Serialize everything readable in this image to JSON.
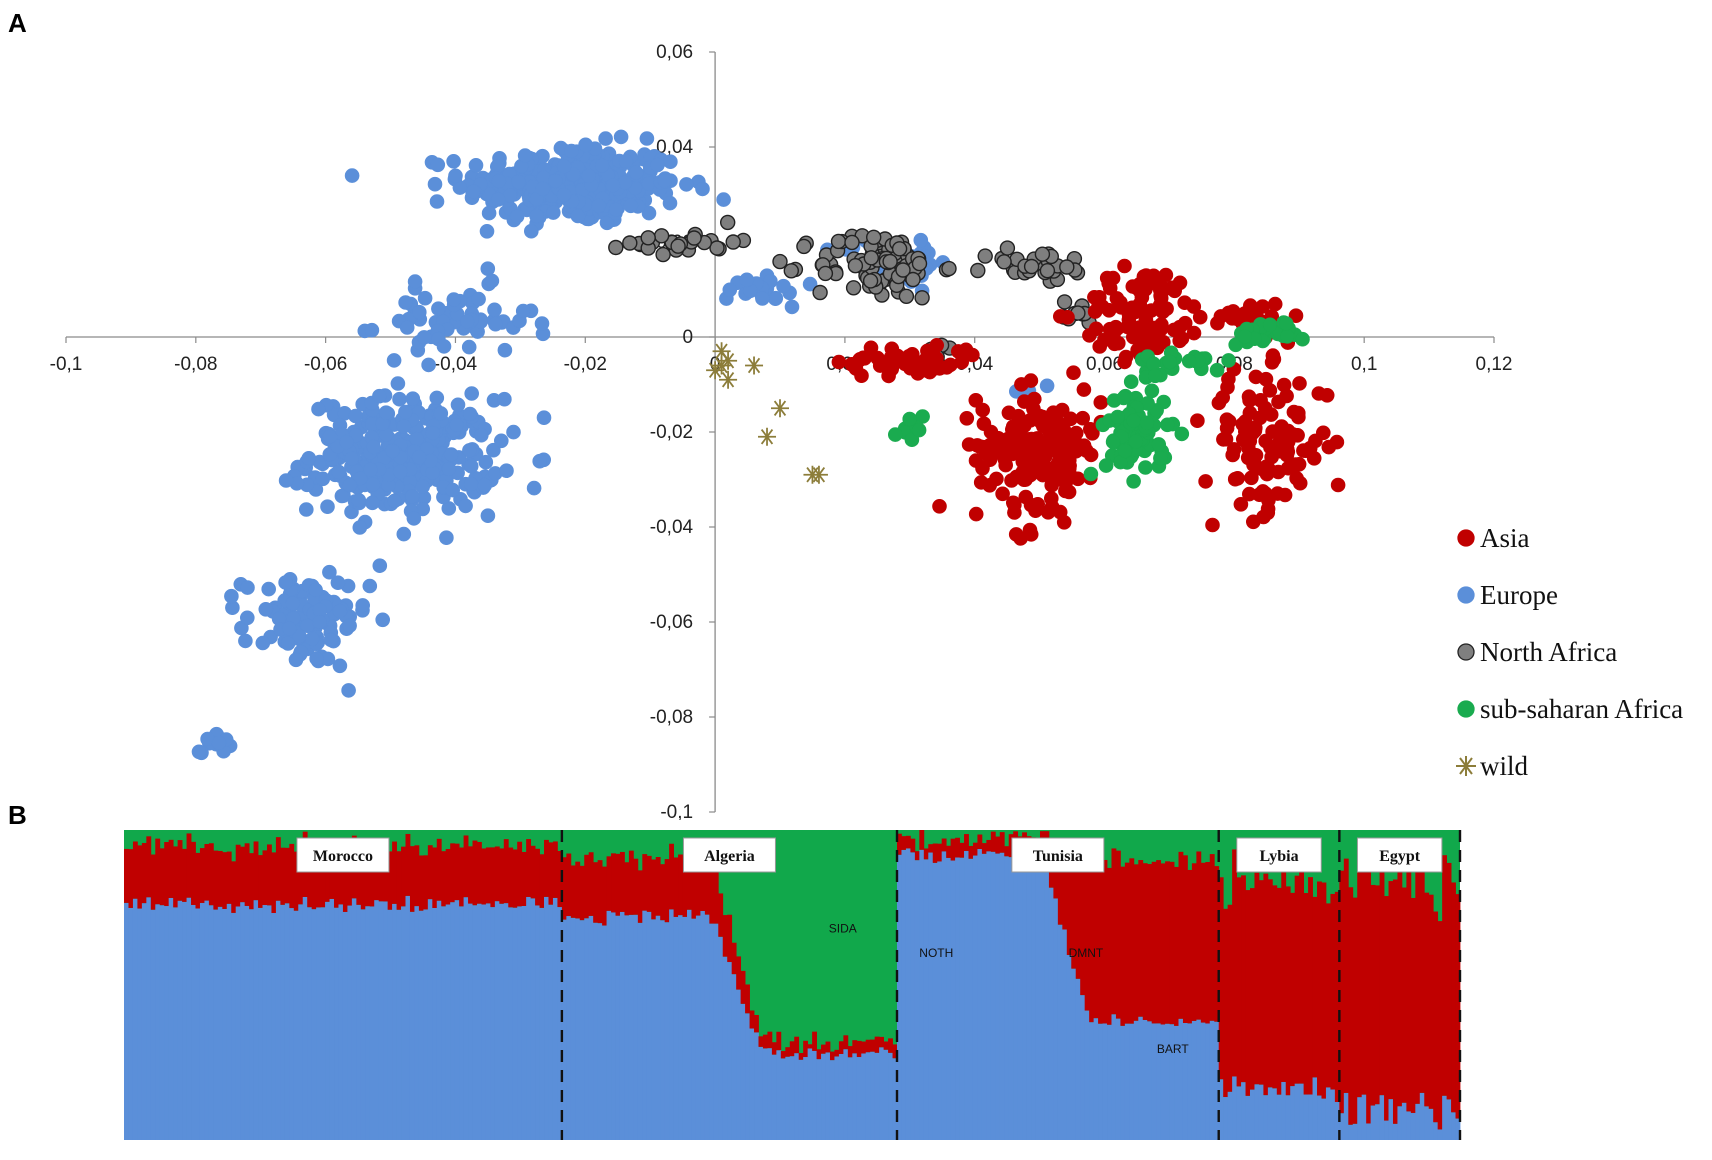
{
  "panels": {
    "a_label": "A",
    "b_label": "B"
  },
  "colors": {
    "Asia": "#c00000",
    "Europe": "#5b8fd9",
    "North Africa": "#7f7f7f",
    "sub-saharan Africa": "#1aab4f",
    "wild": "#8c7d3a",
    "structure_blue": "#5b8fd9",
    "structure_red": "#c00000",
    "structure_green": "#11a84b"
  },
  "chart_data": [
    {
      "type": "scatter",
      "title": "",
      "xlabel": "",
      "ylabel": "",
      "xlim": [
        -0.1,
        0.12
      ],
      "ylim": [
        -0.1,
        0.06
      ],
      "x_ticks": [
        "-0,1",
        "-0,08",
        "-0,06",
        "-0,04",
        "-0,02",
        "0",
        "0,02",
        "0,04",
        "0,06",
        "0,08",
        "0,1",
        "0,12"
      ],
      "y_ticks": [
        "0,06",
        "0,04",
        "0,02",
        "0",
        "-0,02",
        "-0,04",
        "-0,06",
        "-0,08",
        "-0,1"
      ],
      "legend_position": "right",
      "grid": false,
      "series": [
        {
          "name": "Asia",
          "marker": "circle",
          "clusters": [
            {
              "center": [
                0.066,
                0.005
              ],
              "spread": [
                0.008,
                0.008
              ],
              "count": 90
            },
            {
              "center": [
                0.05,
                -0.023
              ],
              "spread": [
                0.008,
                0.01
              ],
              "count": 160
            },
            {
              "center": [
                0.085,
                -0.022
              ],
              "spread": [
                0.008,
                0.012
              ],
              "count": 110
            },
            {
              "center": [
                0.03,
                -0.005
              ],
              "spread": [
                0.009,
                0.003
              ],
              "count": 50
            },
            {
              "center": [
                0.082,
                0.004
              ],
              "spread": [
                0.005,
                0.003
              ],
              "count": 25
            },
            {
              "center": [
                0.048,
                -0.042
              ],
              "spread": [
                0.002,
                0.002
              ],
              "count": 4
            }
          ]
        },
        {
          "name": "Europe",
          "marker": "circle",
          "clusters": [
            {
              "center": [
                -0.022,
                0.032
              ],
              "spread": [
                0.014,
                0.007
              ],
              "count": 320
            },
            {
              "center": [
                -0.048,
                -0.025
              ],
              "spread": [
                0.012,
                0.01
              ],
              "count": 320
            },
            {
              "center": [
                -0.063,
                -0.06
              ],
              "spread": [
                0.008,
                0.008
              ],
              "count": 100
            },
            {
              "center": [
                -0.077,
                -0.085
              ],
              "spread": [
                0.002,
                0.002
              ],
              "count": 15
            },
            {
              "center": [
                -0.04,
                0.003
              ],
              "spread": [
                0.01,
                0.006
              ],
              "count": 60
            },
            {
              "center": [
                0.028,
                0.016
              ],
              "spread": [
                0.007,
                0.004
              ],
              "count": 50
            },
            {
              "center": [
                0.008,
                0.01
              ],
              "spread": [
                0.005,
                0.003
              ],
              "count": 20
            },
            {
              "center": [
                0.048,
                -0.01
              ],
              "spread": [
                0.003,
                0.003
              ],
              "count": 5
            }
          ]
        },
        {
          "name": "North Africa",
          "marker": "circle",
          "clusters": [
            {
              "center": [
                -0.005,
                0.02
              ],
              "spread": [
                0.007,
                0.002
              ],
              "count": 25
            },
            {
              "center": [
                0.025,
                0.015
              ],
              "spread": [
                0.008,
                0.006
              ],
              "count": 90
            },
            {
              "center": [
                0.05,
                0.015
              ],
              "spread": [
                0.007,
                0.003
              ],
              "count": 30
            },
            {
              "center": [
                0.055,
                0.005
              ],
              "spread": [
                0.004,
                0.002
              ],
              "count": 10
            },
            {
              "center": [
                0.035,
                -0.004
              ],
              "spread": [
                0.002,
                0.003
              ],
              "count": 8
            }
          ]
        },
        {
          "name": "sub-saharan Africa",
          "marker": "circle",
          "clusters": [
            {
              "center": [
                0.065,
                -0.02
              ],
              "spread": [
                0.004,
                0.008
              ],
              "count": 80
            },
            {
              "center": [
                0.072,
                -0.005
              ],
              "spread": [
                0.006,
                0.002
              ],
              "count": 20
            },
            {
              "center": [
                0.085,
                0.001
              ],
              "spread": [
                0.005,
                0.002
              ],
              "count": 25
            },
            {
              "center": [
                0.03,
                -0.02
              ],
              "spread": [
                0.002,
                0.003
              ],
              "count": 8
            }
          ]
        },
        {
          "name": "wild",
          "marker": "asterisk",
          "points": [
            [
              0.001,
              -0.003
            ],
            [
              0.002,
              -0.005
            ],
            [
              0.0,
              -0.007
            ],
            [
              0.002,
              -0.009
            ],
            [
              0.001,
              -0.006
            ],
            [
              0.006,
              -0.006
            ],
            [
              0.01,
              -0.015
            ],
            [
              0.008,
              -0.021
            ],
            [
              0.016,
              -0.029
            ],
            [
              0.015,
              -0.029
            ]
          ]
        }
      ]
    },
    {
      "type": "bar",
      "title": "",
      "stacked": true,
      "normalized": true,
      "components": [
        "blue",
        "red",
        "green"
      ],
      "groups": [
        {
          "name": "Morocco",
          "n": 98,
          "blue": [
            0.74,
            0.78
          ],
          "red": [
            0.17,
            0.21
          ],
          "jitter": 0.02
        },
        {
          "name": "Algeria",
          "n": 75,
          "blue_start": 0.72,
          "blue_end": 0.28,
          "red_start": 0.19,
          "red_end": 0.04,
          "jitter": 0.03
        },
        {
          "name": "Tunisia",
          "n": 72,
          "blue_start": 0.92,
          "blue_end": 0.38,
          "red_start": 0.05,
          "red_end": 0.52,
          "jitter": 0.03
        },
        {
          "name": "Lybia",
          "n": 27,
          "blue": [
            0.13,
            0.2
          ],
          "red": [
            0.6,
            0.72
          ],
          "jitter": 0.04
        },
        {
          "name": "Egypt",
          "n": 27,
          "blue": [
            0.05,
            0.16
          ],
          "red": [
            0.68,
            0.82
          ],
          "jitter": 0.04
        }
      ],
      "cluster_labels": [
        "SIDA",
        "NOTH",
        "DMNT",
        "BART"
      ]
    }
  ]
}
